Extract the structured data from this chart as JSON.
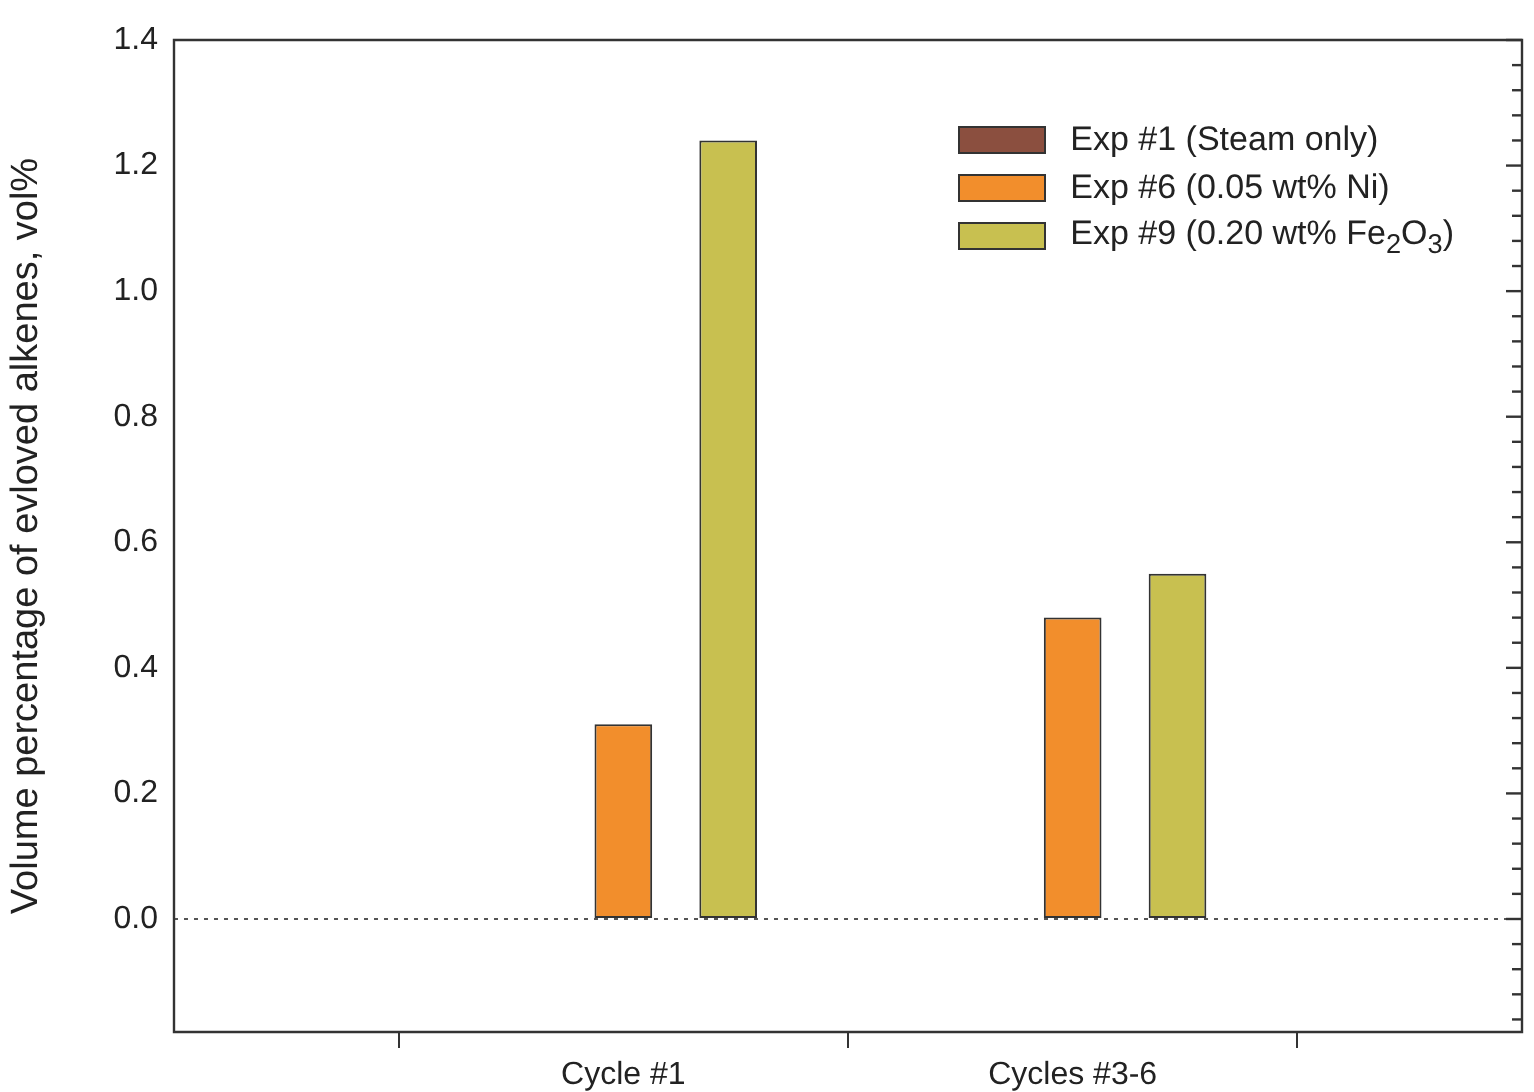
{
  "chart_data": {
    "type": "bar",
    "ylabel": "Volume percentage of evloved alkenes, vol%",
    "categories": [
      null,
      "Cycle #1",
      "Cycles #3-6",
      null
    ],
    "series": [
      {
        "name": "Exp #1 (Steam only)",
        "color": "#8b4f3f",
        "values": [
          null,
          0,
          null,
          null
        ]
      },
      {
        "name": "Exp #6 (0.05 wt% Ni)",
        "color": "#f28e2c",
        "values": [
          null,
          0.31,
          0.48,
          null
        ]
      },
      {
        "name": "Exp #9 (0.20 wt% Fe$_{2}$O$_{3}$)",
        "color": "#c8c050",
        "values": [
          null,
          1.24,
          0.55,
          null
        ]
      }
    ],
    "ylim": [
      -0.18,
      1.4
    ],
    "yticks": [
      {
        "value": -0.16,
        "label": null
      },
      {
        "value": -0.12,
        "label": null
      },
      {
        "value": -0.08,
        "label": null
      },
      {
        "value": -0.04,
        "label": null
      },
      {
        "value": 0,
        "label": "0.0"
      },
      {
        "value": 0.04,
        "label": null
      },
      {
        "value": 0.08,
        "label": null
      },
      {
        "value": 0.12,
        "label": null
      },
      {
        "value": 0.16,
        "label": null
      },
      {
        "value": 0.2,
        "label": "0.2"
      },
      {
        "value": 0.24,
        "label": null
      },
      {
        "value": 0.28,
        "label": null
      },
      {
        "value": 0.32,
        "label": null
      },
      {
        "value": 0.36,
        "label": null
      },
      {
        "value": 0.4,
        "label": "0.4"
      },
      {
        "value": 0.44,
        "label": null
      },
      {
        "value": 0.48,
        "label": null
      },
      {
        "value": 0.52,
        "label": null
      },
      {
        "value": 0.56,
        "label": null
      },
      {
        "value": 0.6,
        "label": "0.6"
      },
      {
        "value": 0.64,
        "label": null
      },
      {
        "value": 0.68,
        "label": null
      },
      {
        "value": 0.72,
        "label": null
      },
      {
        "value": 0.76,
        "label": null
      },
      {
        "value": 0.8,
        "label": "0.8"
      },
      {
        "value": 0.84,
        "label": null
      },
      {
        "value": 0.88,
        "label": null
      },
      {
        "value": 0.92,
        "label": null
      },
      {
        "value": 0.96,
        "label": null
      },
      {
        "value": 1.0,
        "label": "1.0"
      },
      {
        "value": 1.04,
        "label": null
      },
      {
        "value": 1.08,
        "label": null
      },
      {
        "value": 1.12,
        "label": null
      },
      {
        "value": 1.16,
        "label": null
      },
      {
        "value": 1.2,
        "label": "1.2"
      },
      {
        "value": 1.24,
        "label": null
      },
      {
        "value": 1.28,
        "label": null
      },
      {
        "value": 1.32,
        "label": null
      },
      {
        "value": 1.36,
        "label": null
      },
      {
        "value": 1.4,
        "label": "1.4"
      }
    ],
    "ref_lines": [
      {
        "axis": "y",
        "value": 0,
        "line_style": "dotted",
        "color": "#555555"
      }
    ],
    "grid": false,
    "legend": "top right"
  }
}
